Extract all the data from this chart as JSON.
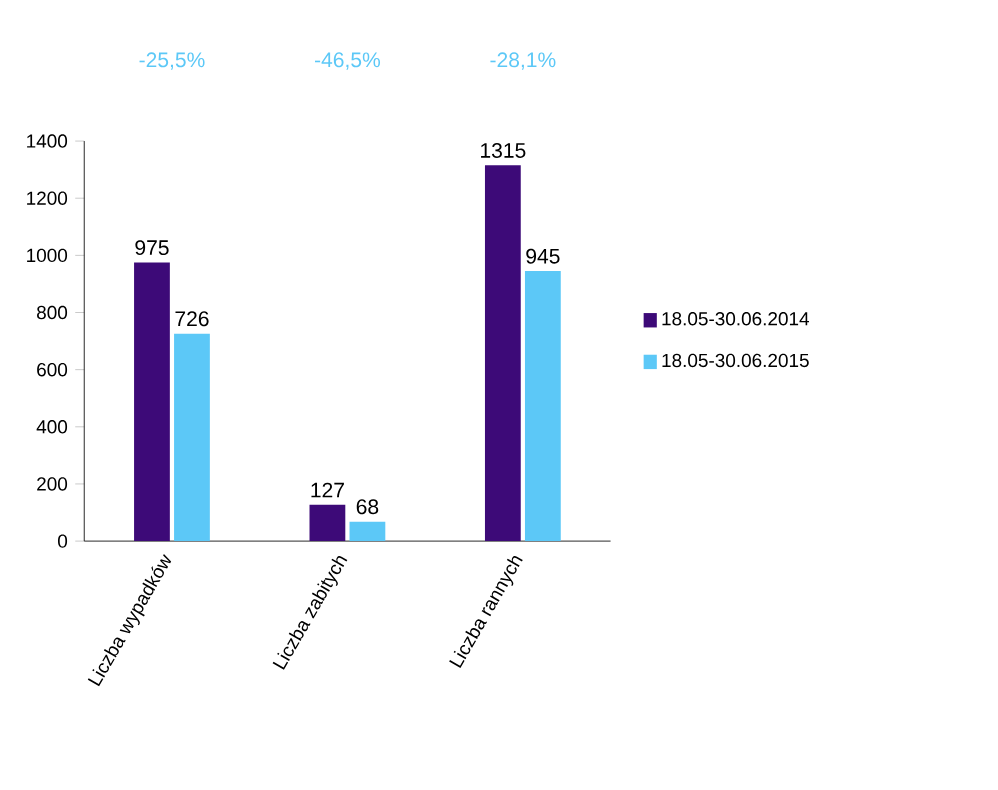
{
  "chart_data": {
    "type": "bar",
    "categories": [
      "Liczba wypadków",
      "Liczba zabitych",
      "Liczba rannych"
    ],
    "series": [
      {
        "name": "18.05-30.06.2014",
        "color": "#3d0a78",
        "values": [
          975,
          127,
          1315
        ]
      },
      {
        "name": "18.05-30.06.2015",
        "color": "#5cc8f7",
        "values": [
          726,
          68,
          945
        ]
      }
    ],
    "ylim": [
      0,
      1400
    ],
    "yticks": [
      0,
      200,
      400,
      600,
      800,
      1000,
      1200,
      1400
    ],
    "data_labels": true,
    "legend": "right",
    "annotations": [
      "-25,5%",
      "-46,5%",
      "-28,1%"
    ]
  }
}
